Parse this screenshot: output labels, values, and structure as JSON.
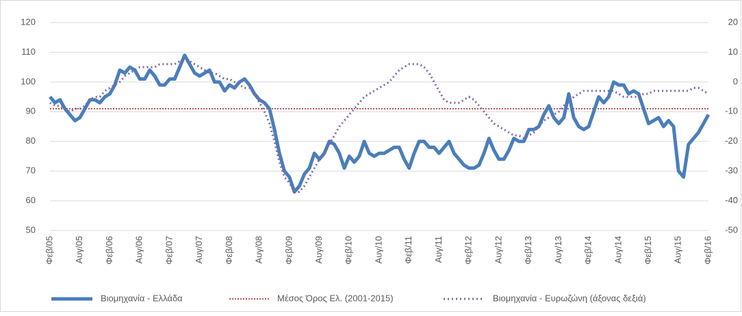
{
  "chart_data": {
    "type": "line",
    "categories": [
      "Φεβ/05",
      null,
      null,
      null,
      null,
      null,
      "Αυγ/05",
      null,
      null,
      null,
      null,
      null,
      "Φεβ/06",
      null,
      null,
      null,
      null,
      null,
      "Αυγ/06",
      null,
      null,
      null,
      null,
      null,
      "Φεβ/07",
      null,
      null,
      null,
      null,
      null,
      "Αυγ/07",
      null,
      null,
      null,
      null,
      null,
      "Φεβ/08",
      null,
      null,
      null,
      null,
      null,
      "Αυγ/08",
      null,
      null,
      null,
      null,
      null,
      "Φεβ/09",
      null,
      null,
      null,
      null,
      null,
      "Αυγ/09",
      null,
      null,
      null,
      null,
      null,
      "Φεβ/10",
      null,
      null,
      null,
      null,
      null,
      "Αυγ/10",
      null,
      null,
      null,
      null,
      null,
      "Φεβ/11",
      null,
      null,
      null,
      null,
      null,
      "Αυγ/11",
      null,
      null,
      null,
      null,
      null,
      "Φεβ/12",
      null,
      null,
      null,
      null,
      null,
      "Αυγ/12",
      null,
      null,
      null,
      null,
      null,
      "Φεβ/13",
      null,
      null,
      null,
      null,
      null,
      "Αυγ/13",
      null,
      null,
      null,
      null,
      null,
      "Φεβ/14",
      null,
      null,
      null,
      null,
      null,
      "Αυγ/14",
      null,
      null,
      null,
      null,
      null,
      "Φεβ/15",
      null,
      null,
      null,
      null,
      null,
      "Αυγ/15",
      null,
      null,
      null,
      null,
      null,
      "Φεβ/16"
    ],
    "series": [
      {
        "name": "Βιομηχανία  - Ελλάδα",
        "color": "#4a7ebb",
        "style": "solid",
        "values": [
          95,
          93,
          94,
          91,
          89,
          87,
          88,
          91,
          94,
          94,
          93,
          95,
          96,
          99,
          104,
          103,
          105,
          104,
          101,
          101,
          104,
          102,
          99,
          99,
          101,
          101,
          105,
          109,
          106,
          103,
          102,
          103,
          104,
          100,
          100,
          97,
          99,
          98,
          100,
          101,
          99,
          96,
          94,
          93,
          91,
          84,
          76,
          70,
          68,
          63,
          65,
          69,
          71,
          76,
          74,
          76,
          80,
          79,
          76,
          71,
          75,
          73,
          75,
          80,
          76,
          75,
          76,
          76,
          77,
          78,
          78,
          74,
          71,
          76,
          80,
          80,
          78,
          78,
          76,
          78,
          80,
          76,
          74,
          72,
          71,
          71,
          72,
          76,
          81,
          77,
          74,
          74,
          77,
          81,
          80,
          80,
          84,
          84,
          85,
          89,
          92,
          88,
          86,
          88,
          96,
          88,
          85,
          84,
          85,
          90,
          95,
          93,
          95,
          100,
          99,
          99,
          96,
          97,
          96,
          91,
          86,
          87,
          88,
          85,
          87,
          85,
          70,
          68,
          79,
          81,
          83,
          86,
          89
        ]
      },
      {
        "name": "Βιομηχανία - Ευρωζώνη (άξονας δεξιά)",
        "color": "#8064a2",
        "style": "dotted",
        "axis": "y2",
        "values": [
          -7,
          -8,
          -8,
          -9,
          -10,
          -9,
          -9,
          -8,
          -6,
          -5,
          -5,
          -3,
          -2,
          -1,
          0,
          2,
          3,
          4,
          5,
          5,
          5,
          5,
          6,
          6,
          6,
          6,
          7,
          7,
          7,
          6,
          5,
          4,
          3,
          3,
          2,
          1,
          1,
          0,
          -1,
          -2,
          -2,
          -4,
          -7,
          -10,
          -14,
          -20,
          -27,
          -32,
          -34,
          -37,
          -37,
          -35,
          -32,
          -29,
          -26,
          -24,
          -21,
          -18,
          -15,
          -13,
          -11,
          -9,
          -7,
          -5,
          -4,
          -3,
          -2,
          -1,
          0,
          2,
          4,
          5,
          6,
          6,
          6,
          5,
          3,
          0,
          -3,
          -6,
          -7,
          -7,
          -7,
          -6,
          -5,
          -6,
          -8,
          -10,
          -12,
          -14,
          -15,
          -16,
          -17,
          -18,
          -18,
          -19,
          -18,
          -17,
          -15,
          -13,
          -12,
          -11,
          -10,
          -8,
          -7,
          -5,
          -4,
          -3,
          -3,
          -3,
          -3,
          -3,
          -3,
          -3,
          -4,
          -5,
          -5,
          -5,
          -5,
          -4,
          -4,
          -3,
          -3,
          -3,
          -3,
          -3,
          -3,
          -3,
          -3,
          -2,
          -2,
          -3,
          -4
        ]
      }
    ],
    "reference_line": {
      "name": "Μέσος Όρος Ελ. (2001-2015)",
      "color": "#c0504d",
      "value": 91
    },
    "ylim": [
      50,
      120
    ],
    "yticks": [
      50,
      60,
      70,
      80,
      90,
      100,
      110,
      120
    ],
    "y2lim": [
      -50,
      20
    ],
    "y2ticks": [
      -50,
      -40,
      -30,
      -20,
      -10,
      0,
      10,
      20
    ],
    "grid": true,
    "legend": "bottom"
  }
}
